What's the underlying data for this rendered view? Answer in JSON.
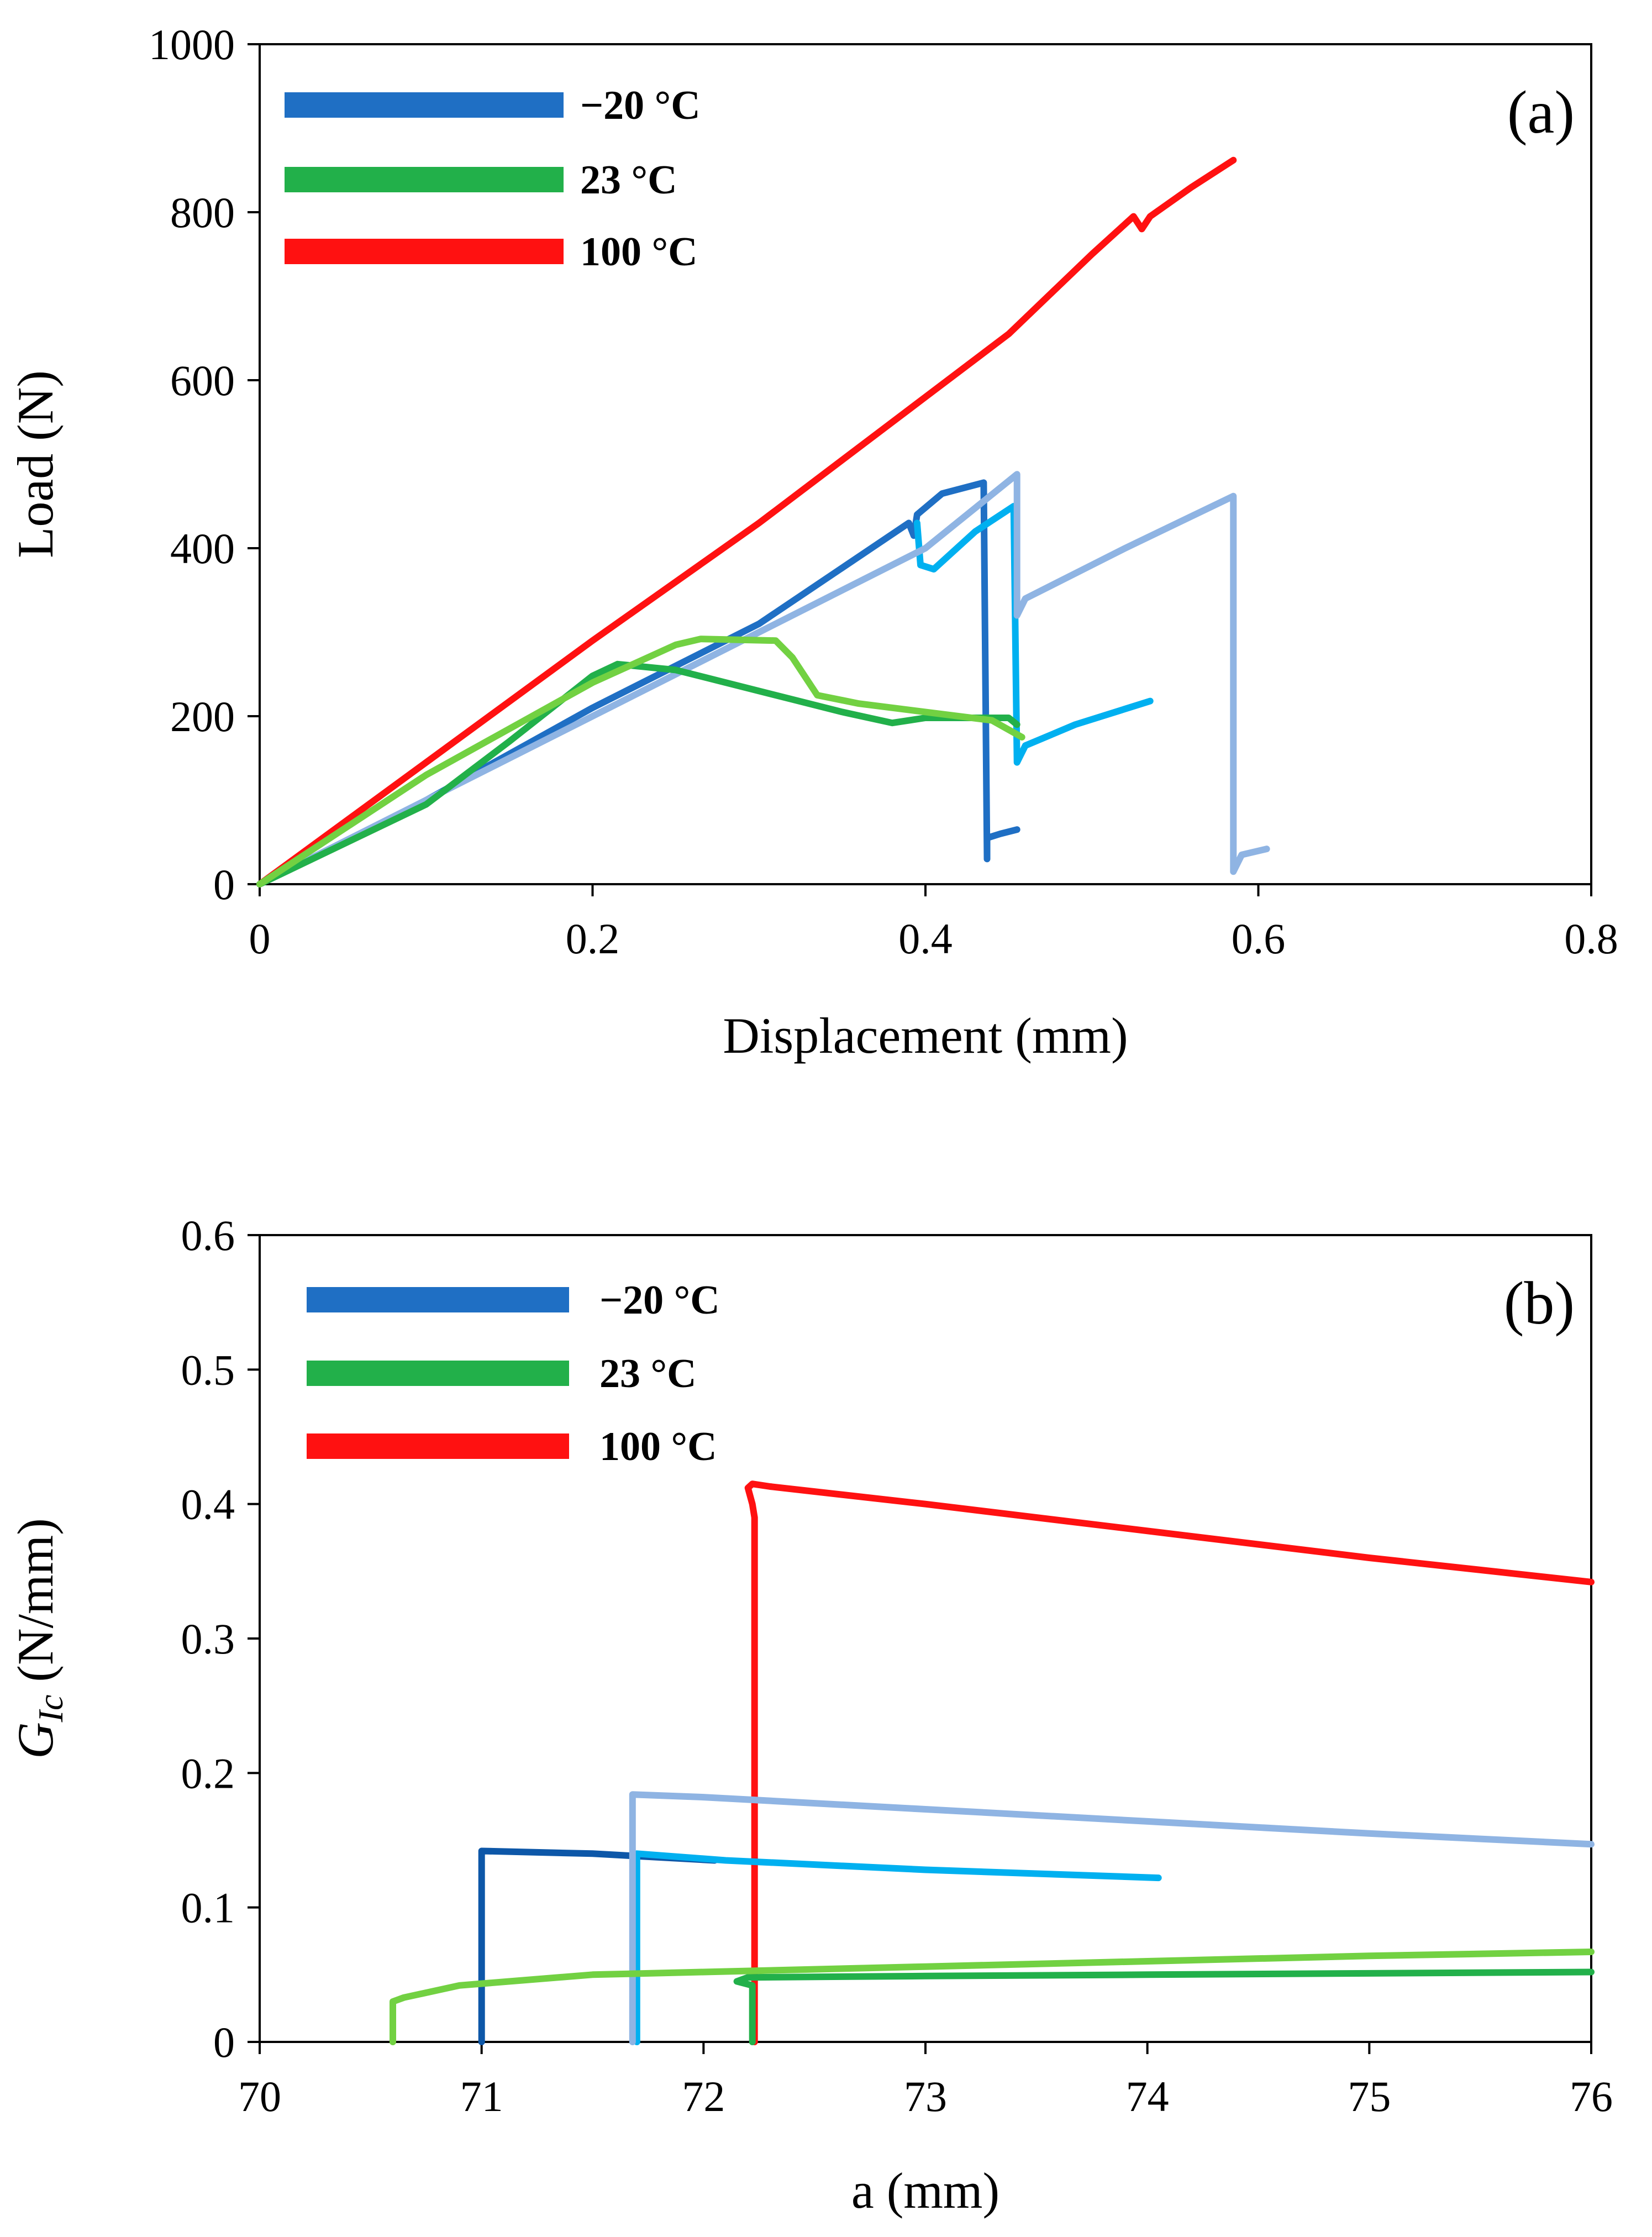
{
  "chart_data": [
    {
      "type": "line",
      "panel_label": "(a)",
      "xlabel": "Displacement  (mm)",
      "ylabel": "Load (N)",
      "xlim": [
        0,
        0.8
      ],
      "ylim": [
        0,
        1000
      ],
      "xticks": [
        0,
        0.2,
        0.4,
        0.6,
        0.8
      ],
      "yticks": [
        0,
        200,
        400,
        600,
        800,
        1000
      ],
      "xtick_labels": [
        "0",
        "0.2",
        "0.4",
        "0.6",
        "0.8"
      ],
      "ytick_labels": [
        "0",
        "200",
        "400",
        "600",
        "800",
        "1000"
      ],
      "grid": false,
      "legend_position": "top-left",
      "legend": [
        {
          "label": "−20 °C",
          "color": "#1f6fc4"
        },
        {
          "label": "23 °C",
          "color": "#22b04a"
        },
        {
          "label": "100 °C",
          "color": "#ff1111"
        }
      ],
      "series": [
        {
          "name": "100 °C",
          "color": "#ff1111",
          "x": [
            0,
            0.1,
            0.2,
            0.3,
            0.4,
            0.45,
            0.5,
            0.525,
            0.53,
            0.535,
            0.56,
            0.585
          ],
          "y": [
            0,
            145,
            290,
            430,
            580,
            655,
            750,
            795,
            780,
            795,
            830,
            862
          ]
        },
        {
          "name": "-20 °C specimen 1",
          "color": "#1f6fc4",
          "x": [
            0,
            0.1,
            0.2,
            0.3,
            0.39,
            0.393,
            0.395,
            0.41,
            0.435,
            0.437,
            0.437,
            0.445,
            0.455
          ],
          "y": [
            0,
            100,
            210,
            310,
            430,
            415,
            440,
            465,
            478,
            30,
            55,
            60,
            65
          ]
        },
        {
          "name": "-20 °C specimen 2",
          "color": "#00b0f0",
          "x": [
            0.395,
            0.397,
            0.405,
            0.43,
            0.453,
            0.455,
            0.46,
            0.49,
            0.535
          ],
          "y": [
            430,
            380,
            375,
            420,
            450,
            145,
            165,
            190,
            218
          ]
        },
        {
          "name": "-20 °C specimen 3",
          "color": "#8fb4e3",
          "x": [
            0,
            0.1,
            0.2,
            0.3,
            0.4,
            0.455,
            0.455,
            0.46,
            0.52,
            0.585,
            0.585,
            0.59,
            0.605
          ],
          "y": [
            0,
            100,
            200,
            300,
            400,
            488,
            320,
            340,
            400,
            462,
            15,
            35,
            42
          ]
        },
        {
          "name": "23 °C specimen 1",
          "color": "#22b04a",
          "x": [
            0,
            0.1,
            0.15,
            0.2,
            0.215,
            0.25,
            0.3,
            0.35,
            0.38,
            0.4,
            0.45,
            0.455
          ],
          "y": [
            0,
            95,
            170,
            248,
            262,
            255,
            230,
            205,
            192,
            198,
            198,
            190
          ]
        },
        {
          "name": "23 °C specimen 2",
          "color": "#72d142",
          "x": [
            0,
            0.1,
            0.2,
            0.25,
            0.265,
            0.31,
            0.32,
            0.335,
            0.36,
            0.4,
            0.44,
            0.458
          ],
          "y": [
            0,
            130,
            240,
            285,
            292,
            290,
            270,
            225,
            215,
            205,
            195,
            175
          ]
        }
      ]
    },
    {
      "type": "line",
      "panel_label": "(b)",
      "xlabel": "a (mm)",
      "ylabel_main": "G",
      "ylabel_sub": "Ic",
      "ylabel_unit": " (N/mm)",
      "xlim": [
        70,
        76
      ],
      "ylim": [
        0,
        0.6
      ],
      "xticks": [
        70,
        71,
        72,
        73,
        74,
        75,
        76
      ],
      "yticks": [
        0,
        0.1,
        0.2,
        0.3,
        0.4,
        0.5,
        0.6
      ],
      "xtick_labels": [
        "70",
        "71",
        "72",
        "73",
        "74",
        "75",
        "76"
      ],
      "ytick_labels": [
        "0",
        "0.1",
        "0.2",
        "0.3",
        "0.4",
        "0.5",
        "0.6"
      ],
      "grid": false,
      "legend_position": "top-left",
      "legend": [
        {
          "label": "−20 °C",
          "color": "#1f6fc4"
        },
        {
          "label": "23 °C",
          "color": "#22b04a"
        },
        {
          "label": "100 °C",
          "color": "#ff1111"
        }
      ],
      "series": [
        {
          "name": "100 °C",
          "color": "#ff1111",
          "x": [
            72.23,
            72.23,
            72.22,
            72.2,
            72.22,
            72.3,
            73,
            74,
            75,
            76
          ],
          "y": [
            0,
            0.39,
            0.4,
            0.412,
            0.415,
            0.413,
            0.4,
            0.38,
            0.36,
            0.342
          ]
        },
        {
          "name": "-20 °C specimen 1",
          "color": "#0d57a8",
          "x": [
            71,
            71,
            71.5,
            72.05
          ],
          "y": [
            0,
            0.142,
            0.14,
            0.135
          ]
        },
        {
          "name": "-20 °C specimen 2",
          "color": "#00b0f0",
          "x": [
            71.7,
            71.7,
            72.1,
            73,
            74.05
          ],
          "y": [
            0,
            0.14,
            0.135,
            0.128,
            0.122
          ]
        },
        {
          "name": "-20 °C specimen 3",
          "color": "#8fb4e3",
          "x": [
            71.68,
            71.68,
            72,
            73,
            74,
            75,
            76
          ],
          "y": [
            0,
            0.184,
            0.182,
            0.173,
            0.164,
            0.155,
            0.147
          ]
        },
        {
          "name": "23 °C specimen 1",
          "color": "#22b04a",
          "x": [
            72.22,
            72.22,
            72.15,
            72.2,
            73,
            74,
            75,
            76
          ],
          "y": [
            0,
            0.042,
            0.045,
            0.048,
            0.049,
            0.05,
            0.051,
            0.052
          ]
        },
        {
          "name": "23 °C specimen 2",
          "color": "#72d142",
          "x": [
            70.6,
            70.6,
            70.65,
            70.9,
            71.5,
            72,
            73,
            74,
            75,
            76
          ],
          "y": [
            0,
            0.03,
            0.033,
            0.042,
            0.05,
            0.052,
            0.056,
            0.06,
            0.064,
            0.067
          ]
        }
      ]
    }
  ]
}
